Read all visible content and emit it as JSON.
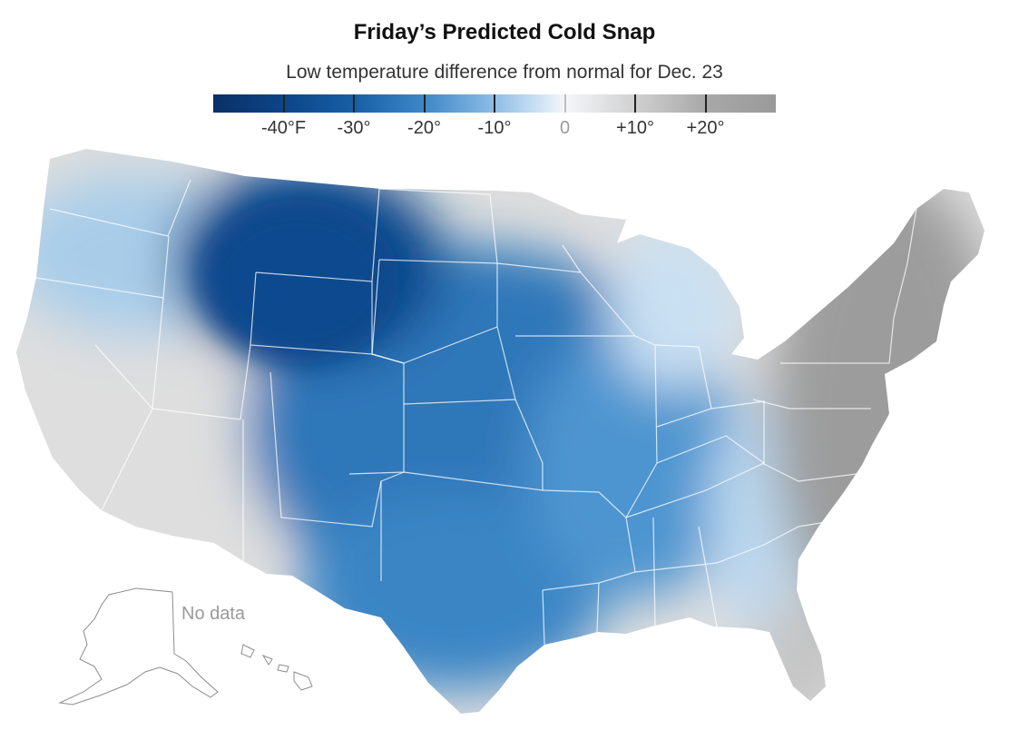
{
  "title": "Friday’s Predicted Cold Snap",
  "subtitle": "Low temperature difference from normal for Dec. 23",
  "legend": {
    "min": -50,
    "max": 30,
    "stops": [
      {
        "value": -50,
        "color": "#0b2f66"
      },
      {
        "value": -40,
        "color": "#0d4587"
      },
      {
        "value": -30,
        "color": "#175fa6"
      },
      {
        "value": -20,
        "color": "#3e87c7"
      },
      {
        "value": -10,
        "color": "#8dbde6"
      },
      {
        "value": 0,
        "color": "#f4f7fb"
      },
      {
        "value": 10,
        "color": "#d0d0d0"
      },
      {
        "value": 20,
        "color": "#a8a8a8"
      },
      {
        "value": 30,
        "color": "#9a9a9a"
      }
    ],
    "ticks": [
      {
        "value": -40,
        "label": "-40°F"
      },
      {
        "value": -30,
        "label": "-30°"
      },
      {
        "value": -20,
        "label": "-20°"
      },
      {
        "value": -10,
        "label": "-10°"
      },
      {
        "value": 0,
        "label": "0"
      },
      {
        "value": 10,
        "label": "+10°"
      },
      {
        "value": 20,
        "label": "+20°"
      }
    ]
  },
  "map": {
    "no_data_label": "No data",
    "region_colors": {
      "west": "#dedede",
      "northwest": "#a9cde9",
      "northern_plains": "#0f4a8e",
      "plains": "#2d77b9",
      "south": "#3b85c5",
      "midwest": "#4d95d0",
      "great_lakes": "#c9e0f3",
      "southeast_edge": "#bcd8ef",
      "east": "#9c9c9c",
      "florida": "#c4c4c4",
      "alaska": "#ffffff"
    }
  }
}
